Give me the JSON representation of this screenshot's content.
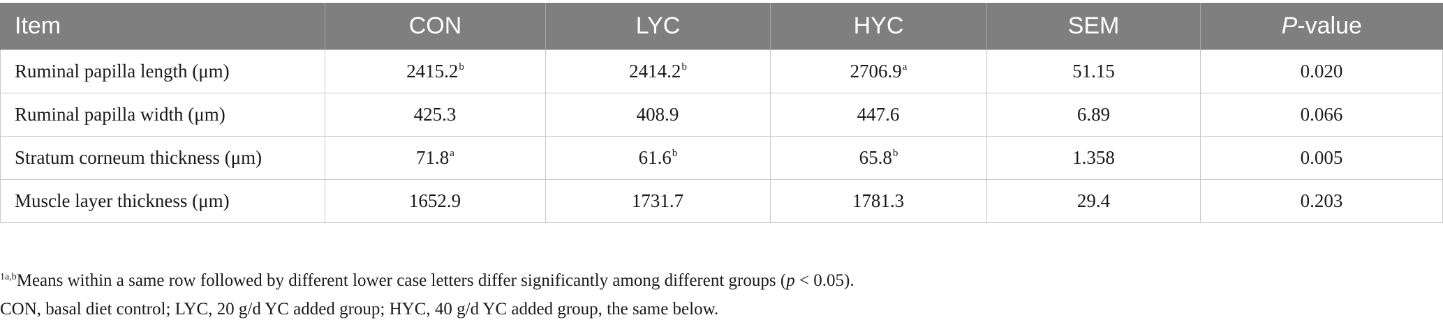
{
  "table": {
    "headers": [
      "Item",
      "CON",
      "LYC",
      "HYC",
      "SEM"
    ],
    "pvalue_header": {
      "italic": "P",
      "rest": "-value"
    },
    "rows": [
      {
        "item": "Ruminal papilla length (μm)",
        "con": "2415.2",
        "con_sup": "b",
        "lyc": "2414.2",
        "lyc_sup": "b",
        "hyc": "2706.9",
        "hyc_sup": "a",
        "sem": "51.15",
        "p": "0.020"
      },
      {
        "item": "Ruminal papilla width (μm)",
        "con": "425.3",
        "con_sup": "",
        "lyc": "408.9",
        "lyc_sup": "",
        "hyc": "447.6",
        "hyc_sup": "",
        "sem": "6.89",
        "p": "0.066"
      },
      {
        "item": "Stratum corneum thickness (μm)",
        "con": "71.8",
        "con_sup": "a",
        "lyc": "61.6",
        "lyc_sup": "b",
        "hyc": "65.8",
        "hyc_sup": "b",
        "sem": "1.358",
        "p": "0.005"
      },
      {
        "item": "Muscle layer thickness (μm)",
        "con": "1652.9",
        "con_sup": "",
        "lyc": "1731.7",
        "lyc_sup": "",
        "hyc": "1781.3",
        "hyc_sup": "",
        "sem": "29.4",
        "p": "0.203"
      }
    ]
  },
  "footnotes": {
    "note1_marker": "1a,b",
    "note1_text_a": "Means within a same row followed by different lower case letters differ significantly among different groups (",
    "note1_italic": "p",
    "note1_text_b": " < 0.05).",
    "note2": "CON, basal diet control; LYC, 20 g/d YC added group; HYC, 40 g/d YC added group, the same below."
  }
}
